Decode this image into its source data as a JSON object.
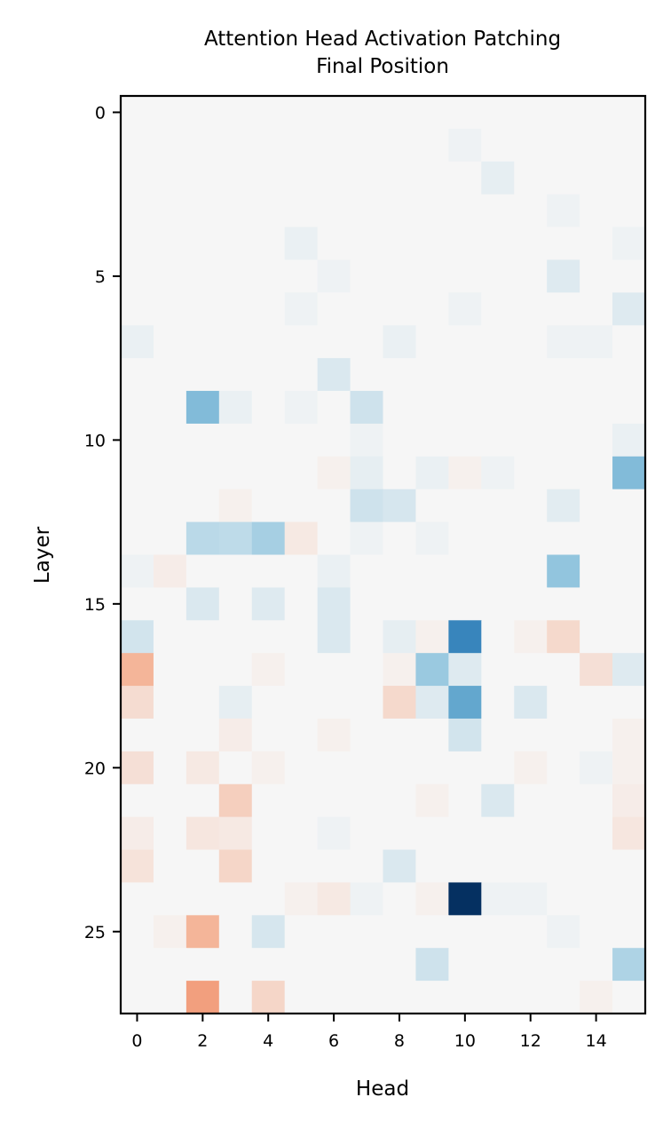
{
  "chart_data": {
    "type": "heatmap",
    "title": "Attention Head Activation Patching",
    "subtitle": "Final Position",
    "xlabel": "Head",
    "ylabel": "Layer",
    "x_ticks": [
      "0",
      "2",
      "4",
      "6",
      "8",
      "10",
      "12",
      "14"
    ],
    "y_ticks": [
      "0",
      "5",
      "10",
      "15",
      "20",
      "25"
    ],
    "n_heads": 16,
    "n_layers": 28,
    "colormap": "RdBu",
    "value_range": [
      -1,
      1
    ],
    "grid": false,
    "colorbar": false,
    "values": [
      [
        0,
        0,
        0,
        0,
        0,
        0,
        0,
        0,
        0,
        0,
        0,
        0,
        0,
        0,
        0,
        0
      ],
      [
        0,
        0,
        0,
        0,
        0,
        0,
        0,
        0,
        0,
        0,
        0.02,
        0,
        0,
        0,
        0,
        0
      ],
      [
        0,
        0,
        0,
        0,
        0,
        0,
        0,
        0,
        0,
        0,
        0,
        0.04,
        0,
        0,
        0,
        0
      ],
      [
        0,
        0,
        0,
        0,
        0,
        0,
        0,
        0,
        0,
        0,
        0,
        0,
        0,
        0.02,
        0,
        0
      ],
      [
        0,
        0,
        0,
        0,
        0,
        0.03,
        0,
        0,
        0,
        0,
        0,
        0,
        0,
        0,
        0,
        0.02
      ],
      [
        0,
        0,
        0,
        0,
        0,
        0,
        0.02,
        0,
        0,
        0,
        0,
        0,
        0,
        0.06,
        0,
        0
      ],
      [
        0,
        0,
        0,
        0,
        0,
        0.02,
        0,
        0,
        0,
        0,
        0.02,
        0,
        0,
        0,
        0,
        0.06
      ],
      [
        0.03,
        0,
        0,
        0,
        0,
        0,
        0,
        0,
        0.03,
        0,
        0,
        0,
        0,
        0.02,
        0.02,
        0
      ],
      [
        0,
        0,
        0,
        0,
        0,
        0,
        0.07,
        0,
        0,
        0,
        0,
        0,
        0,
        0,
        0,
        0
      ],
      [
        0,
        0,
        0.3,
        0.03,
        0,
        0.02,
        0,
        0.1,
        0,
        0,
        0,
        0,
        0,
        0,
        0,
        0
      ],
      [
        0,
        0,
        0,
        0,
        0,
        0,
        0,
        0.02,
        0,
        0,
        0,
        0,
        0,
        0,
        0,
        0.03
      ],
      [
        0,
        0,
        0,
        0,
        0,
        0,
        -0.02,
        0.04,
        0,
        0.03,
        -0.02,
        0.02,
        0,
        0,
        0,
        0.3
      ],
      [
        0,
        0,
        0,
        -0.02,
        0,
        0,
        0,
        0.1,
        0.08,
        0,
        0,
        0,
        0,
        0.05,
        0,
        0
      ],
      [
        0,
        0,
        0.15,
        0.14,
        0.2,
        -0.04,
        0,
        0.02,
        0,
        0.02,
        0,
        0,
        0,
        0,
        0,
        0
      ],
      [
        0.02,
        -0.03,
        0,
        0,
        0,
        0,
        0.03,
        0,
        0,
        0,
        0,
        0,
        0,
        0.25,
        0,
        0
      ],
      [
        0,
        0,
        0.07,
        0,
        0.06,
        0,
        0.07,
        0,
        0,
        0,
        0,
        0,
        0,
        0,
        0,
        0
      ],
      [
        0.09,
        0,
        0,
        0,
        0,
        0,
        0.07,
        0,
        0.04,
        -0.02,
        0.58,
        0,
        -0.02,
        -0.09,
        0,
        0
      ],
      [
        -0.2,
        0,
        0,
        0,
        -0.02,
        0,
        0,
        0,
        -0.02,
        0.23,
        0.06,
        0,
        0,
        0,
        -0.07,
        0.06
      ],
      [
        -0.08,
        0,
        0,
        0.04,
        0,
        0,
        0,
        0,
        -0.09,
        0.06,
        0.4,
        0,
        0.07,
        0,
        0,
        0
      ],
      [
        0,
        0,
        0,
        -0.03,
        0,
        0,
        -0.02,
        0,
        0,
        0,
        0.09,
        0,
        0,
        0,
        0,
        -0.02
      ],
      [
        -0.07,
        0,
        -0.04,
        0,
        -0.02,
        0,
        0,
        0,
        0,
        0,
        0,
        0,
        -0.02,
        0,
        0.02,
        -0.02
      ],
      [
        0,
        0,
        0,
        -0.12,
        0,
        0,
        0,
        0,
        0,
        -0.02,
        0,
        0.07,
        0,
        0,
        0,
        -0.03
      ],
      [
        -0.03,
        0,
        -0.05,
        -0.04,
        0,
        0,
        0.02,
        0,
        0,
        0,
        0,
        0,
        0,
        0,
        0,
        -0.05
      ],
      [
        -0.06,
        0,
        0,
        -0.1,
        0,
        0,
        0,
        0,
        0.07,
        0,
        0,
        0,
        0,
        0,
        0,
        0
      ],
      [
        0,
        0,
        0,
        0,
        0,
        -0.02,
        -0.04,
        0.02,
        0,
        -0.02,
        1.0,
        0.02,
        0.02,
        0,
        0,
        0
      ],
      [
        0,
        -0.02,
        -0.2,
        0,
        0.08,
        0,
        0,
        0,
        0,
        0,
        0,
        0,
        0,
        0.02,
        0,
        0
      ],
      [
        0,
        0,
        0,
        0,
        0,
        0,
        0,
        0,
        0,
        0.1,
        0,
        0,
        0,
        0,
        0,
        0.18
      ],
      [
        0,
        0,
        -0.27,
        0,
        -0.1,
        0,
        0,
        0,
        0,
        0,
        0,
        0,
        0,
        0,
        -0.02,
        0
      ]
    ]
  }
}
